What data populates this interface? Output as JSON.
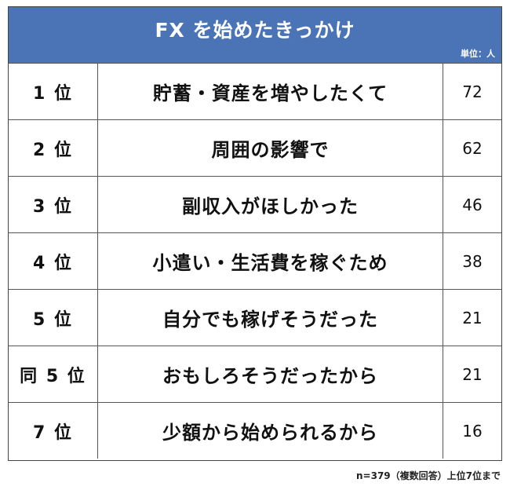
{
  "title": "FX を始めたきっかけ",
  "unit": "単位：人",
  "footnote": "n=379（複数回答）上位7位まで",
  "colors": {
    "header_bg": "#4a74b5",
    "header_text": "#ffffff",
    "border": "#555555"
  },
  "chart_data": {
    "type": "table",
    "columns": [
      "rank",
      "reason",
      "count"
    ],
    "rows": [
      {
        "rank": "1 位",
        "reason": "貯蓄・資産を増やしたくて",
        "value": 72
      },
      {
        "rank": "2 位",
        "reason": "周囲の影響で",
        "value": 62
      },
      {
        "rank": "3 位",
        "reason": "副収入がほしかった",
        "value": 46
      },
      {
        "rank": "4 位",
        "reason": "小遣い・生活費を稼ぐため",
        "value": 38
      },
      {
        "rank": "5 位",
        "reason": "自分でも稼げそうだった",
        "value": 21
      },
      {
        "rank": "同 5 位",
        "reason": "おもしろそうだったから",
        "value": 21
      },
      {
        "rank": "7 位",
        "reason": "少額から始められるから",
        "value": 16
      }
    ]
  }
}
